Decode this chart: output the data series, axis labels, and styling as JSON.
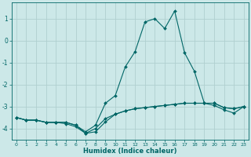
{
  "xlabel": "Humidex (Indice chaleur)",
  "background_color": "#cce8e8",
  "line_color": "#006666",
  "grid_color": "#b0d0d0",
  "x": [
    0,
    1,
    2,
    3,
    4,
    5,
    6,
    7,
    8,
    9,
    10,
    11,
    12,
    13,
    14,
    15,
    16,
    17,
    18,
    19,
    20,
    21,
    22,
    23
  ],
  "series1": [
    -3.5,
    -3.62,
    -3.62,
    -3.72,
    -3.72,
    -3.72,
    -3.85,
    -4.15,
    -3.85,
    -2.85,
    -2.5,
    -1.2,
    -0.5,
    0.85,
    1.0,
    0.55,
    1.35,
    -0.55,
    -1.4,
    -2.85,
    -2.95,
    -3.15,
    -3.3,
    -3.0
  ],
  "series2": [
    -3.5,
    -3.62,
    -3.62,
    -3.72,
    -3.72,
    -3.72,
    -3.85,
    -4.22,
    -4.15,
    -3.7,
    -3.35,
    -3.2,
    -3.1,
    -3.05,
    -3.0,
    -2.95,
    -2.9,
    -2.85,
    -2.85,
    -2.85,
    -2.85,
    -3.05,
    -3.1,
    -3.0
  ],
  "series3": [
    -3.5,
    -3.62,
    -3.62,
    -3.72,
    -3.72,
    -3.78,
    -3.92,
    -4.22,
    -4.0,
    -3.55,
    -3.35,
    -3.2,
    -3.1,
    -3.05,
    -3.0,
    -2.95,
    -2.9,
    -2.85,
    -2.85,
    -2.85,
    -2.85,
    -3.05,
    -3.1,
    -3.0
  ],
  "ylim": [
    -4.5,
    1.75
  ],
  "xlim": [
    -0.5,
    23.5
  ],
  "yticks": [
    -4,
    -3,
    -2,
    -1,
    0,
    1
  ],
  "xticks": [
    0,
    1,
    2,
    3,
    4,
    5,
    6,
    7,
    8,
    9,
    10,
    11,
    12,
    13,
    14,
    15,
    16,
    17,
    18,
    19,
    20,
    21,
    22,
    23
  ],
  "marker_size": 2.0,
  "line_width": 0.8
}
